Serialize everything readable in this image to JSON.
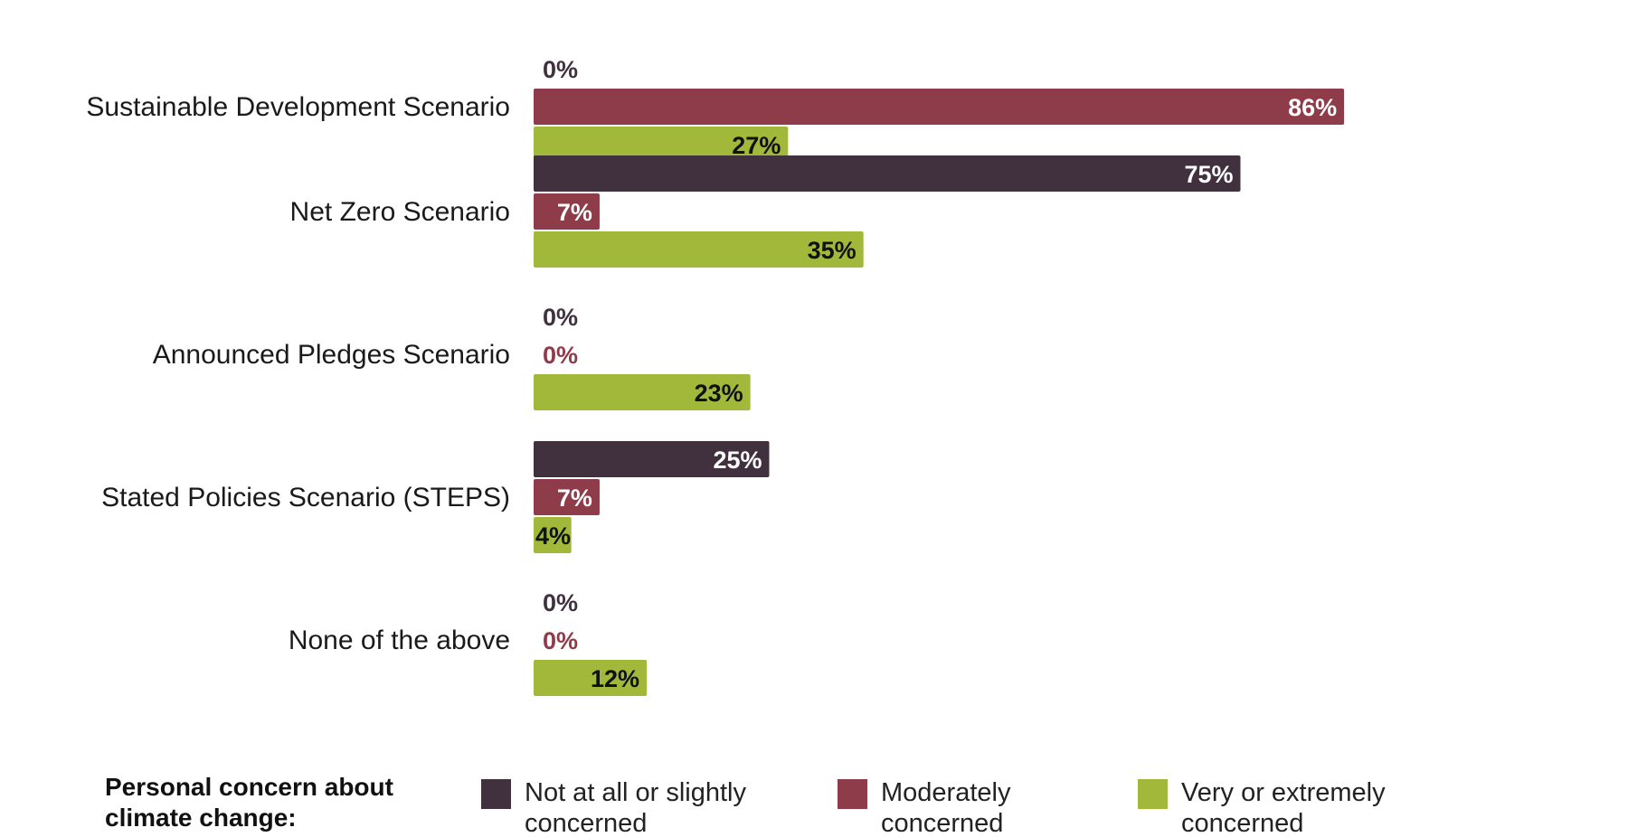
{
  "chart_data": {
    "type": "bar",
    "orientation": "horizontal",
    "categories": [
      "Sustainable Development Scenario",
      "Net Zero Scenario",
      "Announced Pledges Scenario",
      "Stated Policies Scenario (STEPS)",
      "None of the above"
    ],
    "series": [
      {
        "name": "Not at all or slightly concerned",
        "color": "#41313f",
        "values": [
          0,
          75,
          0,
          25,
          0
        ]
      },
      {
        "name": "Moderately concerned",
        "color": "#8e3b4a",
        "values": [
          86,
          7,
          0,
          7,
          0
        ]
      },
      {
        "name": "Very or extremely concerned",
        "color": "#a1b83a",
        "values": [
          27,
          35,
          23,
          4,
          12
        ]
      }
    ],
    "value_suffix": "%",
    "xlim": [
      0,
      100
    ],
    "grid": false,
    "legend": {
      "title_lines": [
        "Personal concern about",
        "climate change:"
      ],
      "placement": "bottom",
      "items": [
        {
          "lines": [
            "Not at all or slightly",
            "concerned"
          ]
        },
        {
          "lines": [
            "Moderately",
            "concerned"
          ]
        },
        {
          "lines": [
            "Very or extremely",
            "concerned"
          ]
        }
      ]
    }
  }
}
